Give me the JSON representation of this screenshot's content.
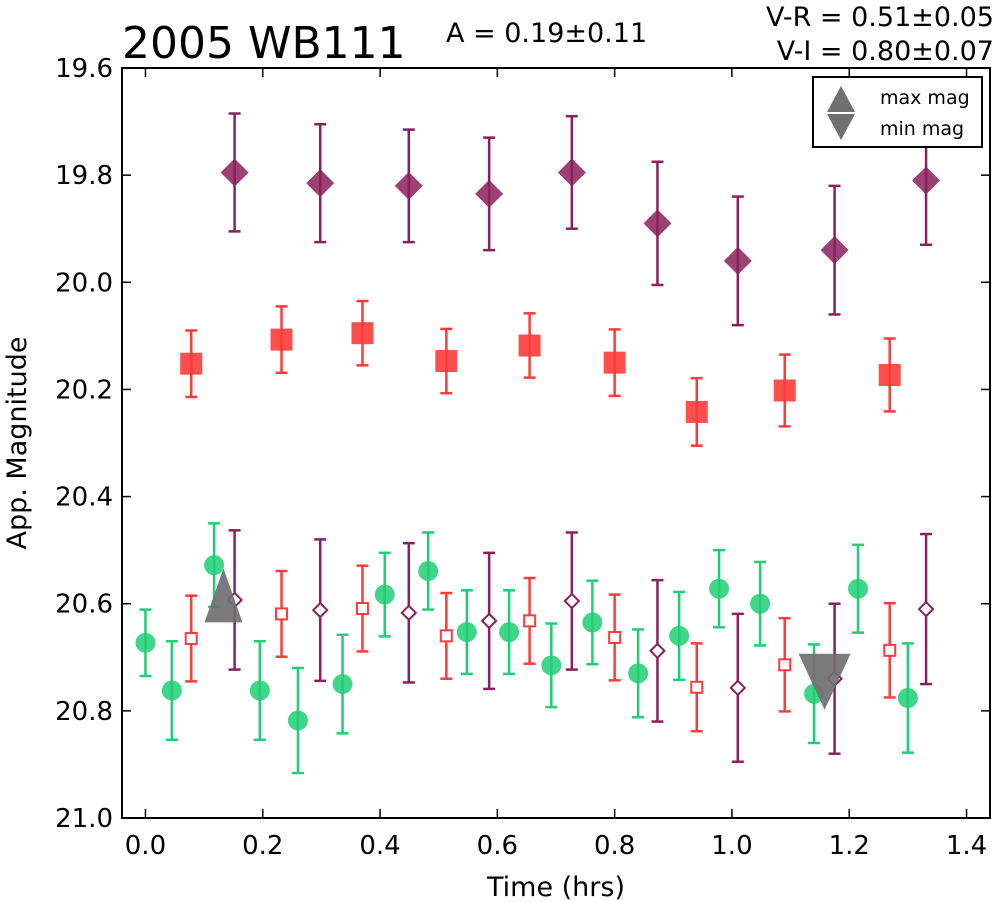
{
  "title": "2005 WB111",
  "amplitude_text": "A  = 0.19±0.11",
  "color_vr": "V-R = 0.51±0.05",
  "color_vi": "V-I  = 0.80±0.07",
  "legend": {
    "max_label": "max mag",
    "min_label": "min mag",
    "marker_color": "#707070"
  },
  "chart_data": {
    "type": "scatter",
    "xlabel": "Time (hrs)",
    "ylabel": "App. Magnitude",
    "xlim": [
      -0.04,
      1.44
    ],
    "ylim": [
      21.0,
      19.6
    ],
    "y_inverted": true,
    "x_ticks": [
      "0.0",
      "0.2",
      "0.4",
      "0.6",
      "0.8",
      "1.0",
      "1.2",
      "1.4"
    ],
    "y_ticks": [
      "19.6",
      "19.8",
      "20.0",
      "20.2",
      "20.4",
      "20.6",
      "20.8",
      "21.0"
    ],
    "legend_position": "top-right",
    "grid": false,
    "series": [
      {
        "color": "#8b1f5d",
        "marker": "diamond-filled",
        "points": [
          {
            "x": 0.152,
            "y": 19.795,
            "err": 0.11
          },
          {
            "x": 0.298,
            "y": 19.815,
            "err": 0.11
          },
          {
            "x": 0.449,
            "y": 19.82,
            "err": 0.105
          },
          {
            "x": 0.586,
            "y": 19.835,
            "err": 0.105
          },
          {
            "x": 0.727,
            "y": 19.795,
            "err": 0.105
          },
          {
            "x": 0.873,
            "y": 19.89,
            "err": 0.115
          },
          {
            "x": 1.01,
            "y": 19.96,
            "err": 0.12
          },
          {
            "x": 1.175,
            "y": 19.94,
            "err": 0.12
          },
          {
            "x": 1.331,
            "y": 19.81,
            "err": 0.12
          }
        ]
      },
      {
        "color": "#ff3b3b",
        "marker": "square-filled",
        "points": [
          {
            "x": 0.078,
            "y": 20.152,
            "err": 0.062
          },
          {
            "x": 0.232,
            "y": 20.107,
            "err": 0.062
          },
          {
            "x": 0.37,
            "y": 20.095,
            "err": 0.06
          },
          {
            "x": 0.513,
            "y": 20.147,
            "err": 0.06
          },
          {
            "x": 0.655,
            "y": 20.118,
            "err": 0.06
          },
          {
            "x": 0.8,
            "y": 20.15,
            "err": 0.062
          },
          {
            "x": 0.94,
            "y": 20.242,
            "err": 0.063
          },
          {
            "x": 1.09,
            "y": 20.202,
            "err": 0.067
          },
          {
            "x": 1.269,
            "y": 20.173,
            "err": 0.068
          }
        ]
      },
      {
        "color": "#1ecf74",
        "marker": "circle-filled",
        "points": [
          {
            "x": 0.0,
            "y": 20.673,
            "err": 0.062
          },
          {
            "x": 0.045,
            "y": 20.762,
            "err": 0.092
          },
          {
            "x": 0.117,
            "y": 20.528,
            "err": 0.078
          },
          {
            "x": 0.195,
            "y": 20.762,
            "err": 0.092
          },
          {
            "x": 0.26,
            "y": 20.818,
            "err": 0.098
          },
          {
            "x": 0.336,
            "y": 20.75,
            "err": 0.092
          },
          {
            "x": 0.408,
            "y": 20.583,
            "err": 0.078
          },
          {
            "x": 0.482,
            "y": 20.539,
            "err": 0.072
          },
          {
            "x": 0.548,
            "y": 20.653,
            "err": 0.078
          },
          {
            "x": 0.62,
            "y": 20.653,
            "err": 0.078
          },
          {
            "x": 0.692,
            "y": 20.715,
            "err": 0.078
          },
          {
            "x": 0.762,
            "y": 20.635,
            "err": 0.078
          },
          {
            "x": 0.84,
            "y": 20.73,
            "err": 0.082
          },
          {
            "x": 0.91,
            "y": 20.66,
            "err": 0.082
          },
          {
            "x": 0.978,
            "y": 20.572,
            "err": 0.072
          },
          {
            "x": 1.048,
            "y": 20.6,
            "err": 0.078
          },
          {
            "x": 1.14,
            "y": 20.768,
            "err": 0.092
          },
          {
            "x": 1.215,
            "y": 20.572,
            "err": 0.082
          },
          {
            "x": 1.3,
            "y": 20.776,
            "err": 0.102
          }
        ]
      },
      {
        "color": "#ff3b3b",
        "marker": "square-open",
        "points": [
          {
            "x": 0.078,
            "y": 20.665,
            "err": 0.08
          },
          {
            "x": 0.232,
            "y": 20.619,
            "err": 0.08
          },
          {
            "x": 0.37,
            "y": 20.609,
            "err": 0.08
          },
          {
            "x": 0.513,
            "y": 20.66,
            "err": 0.08
          },
          {
            "x": 0.655,
            "y": 20.632,
            "err": 0.08
          },
          {
            "x": 0.8,
            "y": 20.663,
            "err": 0.08
          },
          {
            "x": 0.94,
            "y": 20.756,
            "err": 0.082
          },
          {
            "x": 1.09,
            "y": 20.714,
            "err": 0.087
          },
          {
            "x": 1.269,
            "y": 20.687,
            "err": 0.088
          }
        ]
      },
      {
        "color": "#8b1f5d",
        "marker": "diamond-open",
        "points": [
          {
            "x": 0.152,
            "y": 20.593,
            "err": 0.13
          },
          {
            "x": 0.298,
            "y": 20.612,
            "err": 0.132
          },
          {
            "x": 0.449,
            "y": 20.617,
            "err": 0.13
          },
          {
            "x": 0.586,
            "y": 20.632,
            "err": 0.127
          },
          {
            "x": 0.727,
            "y": 20.595,
            "err": 0.128
          },
          {
            "x": 0.873,
            "y": 20.688,
            "err": 0.132
          },
          {
            "x": 1.01,
            "y": 20.757,
            "err": 0.138
          },
          {
            "x": 1.175,
            "y": 20.74,
            "err": 0.14
          },
          {
            "x": 1.331,
            "y": 20.61,
            "err": 0.14
          }
        ]
      }
    ],
    "max_marker": {
      "x": 0.133,
      "y": 20.577
    },
    "min_marker": {
      "x": 1.158,
      "y": 20.742
    }
  }
}
